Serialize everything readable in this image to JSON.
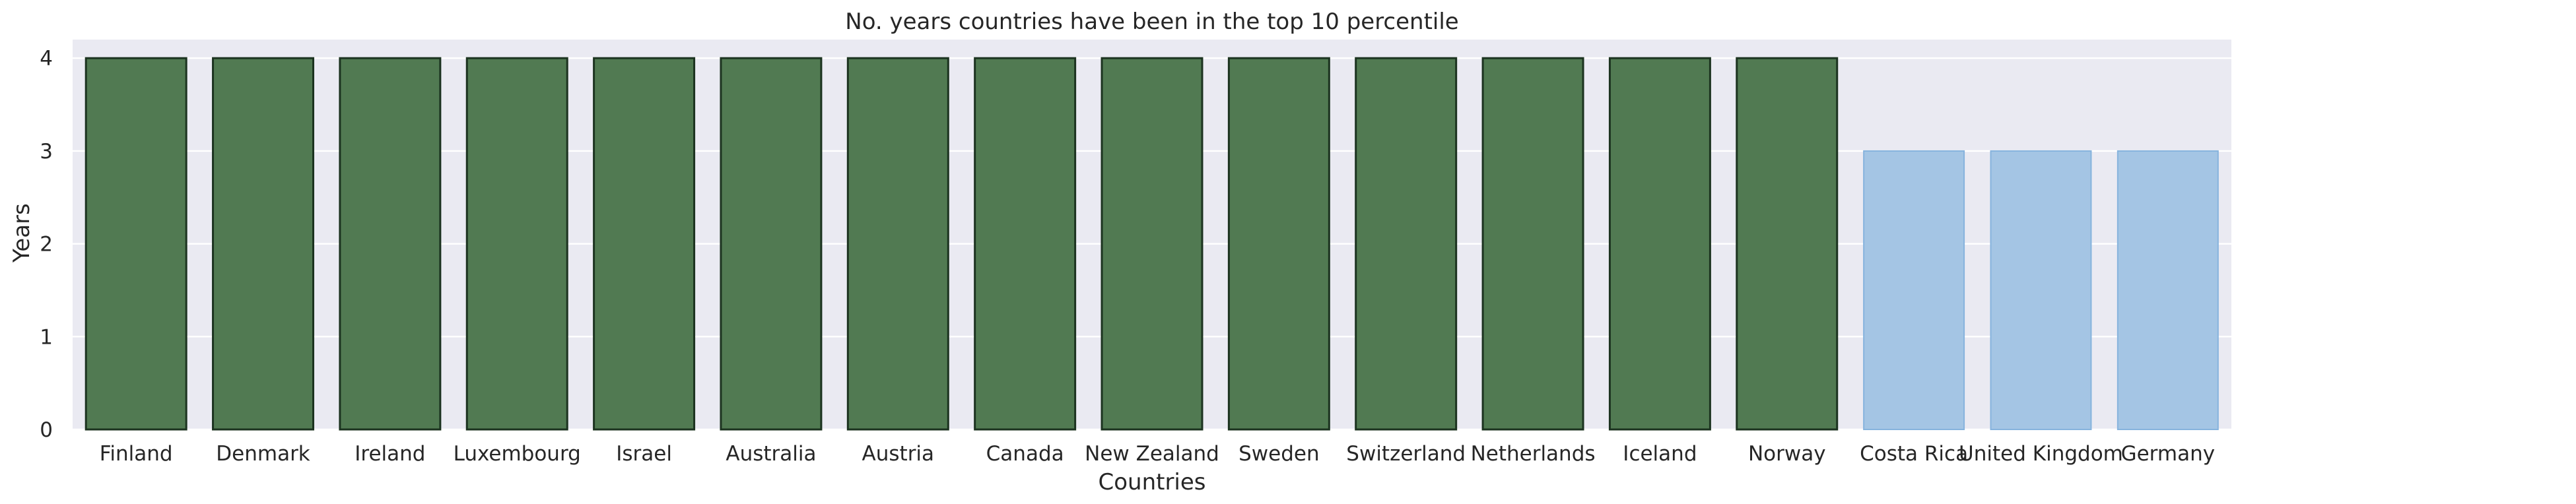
{
  "chart_data": {
    "type": "bar",
    "title": "No. years countries have been in the top 10 percentile",
    "xlabel": "Countries",
    "ylabel": "Years",
    "categories": [
      "Finland",
      "Denmark",
      "Ireland",
      "Luxembourg",
      "Israel",
      "Australia",
      "Austria",
      "Canada",
      "New Zealand",
      "Sweden",
      "Switzerland",
      "Netherlands",
      "Iceland",
      "Norway",
      "Costa Rica",
      "United Kingdom",
      "Germany"
    ],
    "values": [
      4,
      4,
      4,
      4,
      4,
      4,
      4,
      4,
      4,
      4,
      4,
      4,
      4,
      4,
      3,
      3,
      3
    ],
    "ylim": [
      0,
      4.2
    ],
    "yticks": [
      0,
      1,
      2,
      3,
      4
    ],
    "grid": true,
    "colors": {
      "highlight_fill": "#517a52",
      "highlight_edge": "#1c3320",
      "other_fill": "#a4c5e4",
      "other_edge": "#86b3dd",
      "plot_background": "#eaeaf2",
      "gridline": "#ffffff"
    }
  }
}
